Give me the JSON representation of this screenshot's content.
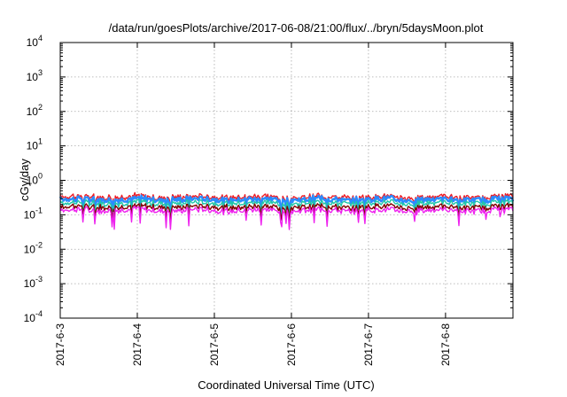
{
  "chart_data": {
    "type": "line",
    "title": "/data/run/goesPlots/archive/2017-06-08/21:00/flux/../bryn/5daysMoon.plot",
    "xlabel": "Coordinated Universal Time (UTC)",
    "ylabel": "cGy/day",
    "yscale": "log",
    "ylim": [
      0.0001,
      10000
    ],
    "y_ticks": [
      {
        "base": "10",
        "exp": "-4",
        "value": 0.0001
      },
      {
        "base": "10",
        "exp": "-3",
        "value": 0.001
      },
      {
        "base": "10",
        "exp": "-2",
        "value": 0.01
      },
      {
        "base": "10",
        "exp": "-1",
        "value": 0.1
      },
      {
        "base": "10",
        "exp": "0",
        "value": 1
      },
      {
        "base": "10",
        "exp": "1",
        "value": 10
      },
      {
        "base": "10",
        "exp": "2",
        "value": 100
      },
      {
        "base": "10",
        "exp": "3",
        "value": 1000
      },
      {
        "base": "10",
        "exp": "4",
        "value": 10000
      }
    ],
    "x_ticks": [
      "2017-6-3",
      "2017-6-4",
      "2017-6-5",
      "2017-6-6",
      "2017-6-7",
      "2017-6-8"
    ],
    "xlim": [
      "2017-06-03 00:00",
      "2017-06-08 21:00"
    ],
    "grid": true,
    "legend": "none",
    "series": [
      {
        "color": "#ee1c25",
        "base": 0.33
      },
      {
        "color": "#2b8cff",
        "base": 0.28
      },
      {
        "color": "#1fc7a8",
        "base": 0.22
      },
      {
        "color": "#800000",
        "base": 0.17
      },
      {
        "color": "#ee22ee",
        "base": 0.135
      }
    ]
  }
}
